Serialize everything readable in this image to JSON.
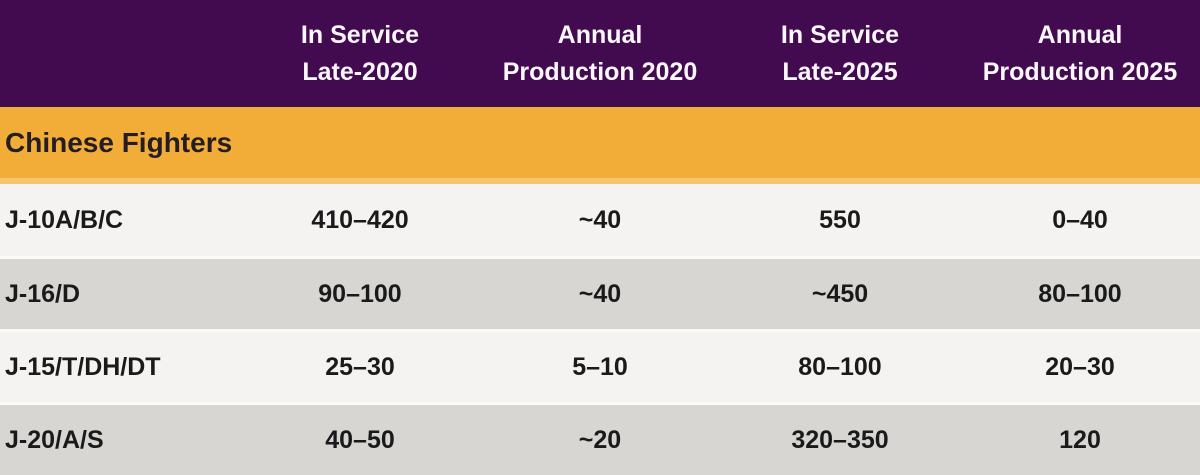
{
  "chart_data": {
    "type": "table",
    "title": "Chinese Fighters",
    "columns": [
      "",
      "In Service Late-2020",
      "Annual Production 2020",
      "In Service Late-2025",
      "Annual Production 2025"
    ],
    "rows": [
      [
        "J-10A/B/C",
        "410–420",
        "~40",
        "550",
        "0–40"
      ],
      [
        "J-16/D",
        "90–100",
        "~40",
        "~450",
        "80–100"
      ],
      [
        "J-15/T/DH/DT",
        "25–30",
        "5–10",
        "80–100",
        "20–30"
      ],
      [
        "J-20/A/S",
        "40–50",
        "~20",
        "320–350",
        "120"
      ]
    ]
  },
  "header": {
    "cols": [
      {
        "line1": "In Service",
        "line2": "Late-2020"
      },
      {
        "line1": "Annual",
        "line2": "Production 2020"
      },
      {
        "line1": "In Service",
        "line2": "Late-2025"
      },
      {
        "line1": "Annual",
        "line2": "Production 2025"
      }
    ]
  },
  "colors": {
    "header_bg": "#420b4f",
    "header_text": "#faf7fb",
    "section_bg": "#f2ac38",
    "section_divider": "#f6c470",
    "section_text": "#241d24",
    "row_light": "#f4f3f1",
    "row_dark": "#d7d6d3",
    "row_divider": "#fbfaf9",
    "data_text": "#1a1a1a"
  }
}
